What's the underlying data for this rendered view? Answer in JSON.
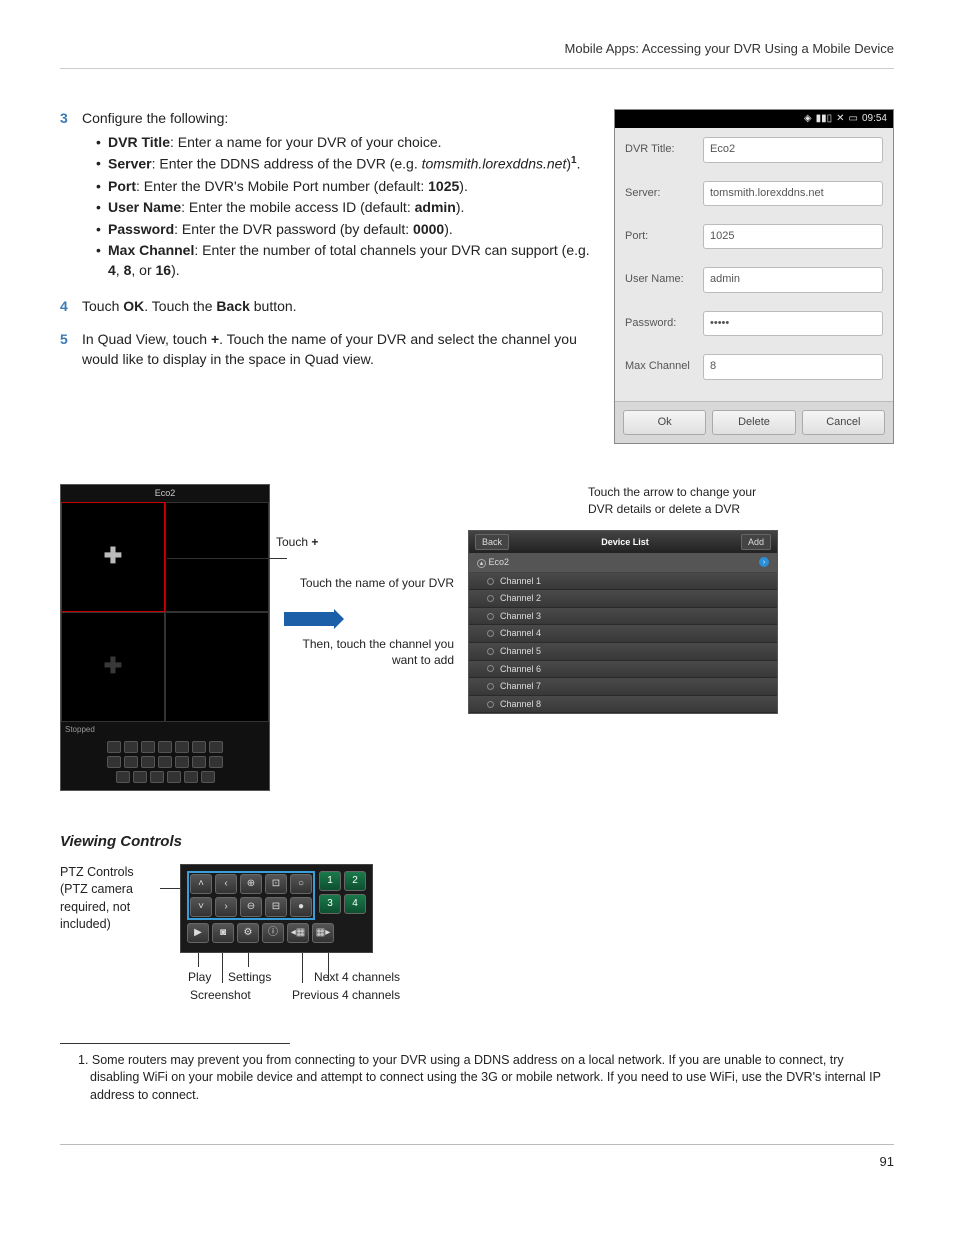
{
  "header": "Mobile Apps: Accessing your DVR Using a Mobile Device",
  "steps": {
    "s3": {
      "num": "3",
      "intro": "Configure the following:",
      "items": [
        {
          "label": "DVR Title",
          "text": ": Enter a name for your DVR of your choice."
        },
        {
          "label": "Server",
          "text": ": Enter the DDNS address of the DVR (e.g. ",
          "italic": "tomsmith.lorexddns.net",
          "after_italic": ")",
          "sup": "1",
          "tail": "."
        },
        {
          "label": "Port",
          "text": ": Enter the DVR's Mobile Port number (default: ",
          "bold2": "1025",
          "after_bold": ")."
        },
        {
          "label": "User Name",
          "text": ": Enter the mobile access ID (default: ",
          "bold2": "admin",
          "after_bold": ")."
        },
        {
          "label": "Password",
          "text": ": Enter the DVR password (by default: ",
          "bold2": "0000",
          "after_bold": ")."
        },
        {
          "label": "Max Channel",
          "text": ": Enter the number of total channels your DVR can support (e.g. ",
          "bold2": "4",
          "mid": ", ",
          "bold3": "8",
          "mid2": ", or ",
          "bold4": "16",
          "after_bold": ")."
        }
      ]
    },
    "s4": {
      "num": "4",
      "pre": "Touch ",
      "b1": "OK",
      "mid": ". Touch the ",
      "b2": "Back",
      "post": " button."
    },
    "s5": {
      "num": "5",
      "pre": "In Quad View, touch ",
      "b1": "+",
      "post": ". Touch the name of your DVR and select the channel you would like to display in the space in Quad view."
    }
  },
  "phone": {
    "time": "09:54",
    "fields": {
      "dvr_title": {
        "label": "DVR Title:",
        "value": "Eco2"
      },
      "server": {
        "label": "Server:",
        "value": "tomsmith.lorexddns.net"
      },
      "port": {
        "label": "Port:",
        "value": "1025"
      },
      "user": {
        "label": "User Name:",
        "value": "admin"
      },
      "password": {
        "label": "Password:",
        "value": "•••••"
      },
      "max": {
        "label": "Max Channel",
        "value": "8"
      }
    },
    "buttons": {
      "ok": "Ok",
      "delete": "Delete",
      "cancel": "Cancel"
    }
  },
  "quad": {
    "title": "Eco2",
    "status": "Stopped"
  },
  "callouts": {
    "touch_plus_pre": "Touch ",
    "touch_plus_b": "+",
    "touch_name": "Touch the name of your DVR",
    "then_touch": "Then, touch the channel you want to add",
    "arrow_note": "Touch the arrow to change your DVR details or delete a DVR"
  },
  "device_list": {
    "back": "Back",
    "title": "Device List",
    "add": "Add",
    "dvr": "Eco2",
    "channels": [
      "Channel 1",
      "Channel 2",
      "Channel 3",
      "Channel 4",
      "Channel 5",
      "Channel 6",
      "Channel 7",
      "Channel 8"
    ]
  },
  "viewing": {
    "title": "Viewing Controls",
    "ptz_label": "PTZ Controls (PTZ camera required, not included)",
    "nums": [
      "1",
      "2",
      "3",
      "4"
    ],
    "labels": {
      "play": "Play",
      "screenshot": "Screenshot",
      "settings": "Settings",
      "next4": "Next 4 channels",
      "prev4": "Previous 4 channels"
    }
  },
  "footnote": "1. Some routers may prevent you from connecting to your DVR using a DDNS address on a local network. If you are unable to connect, try disabling WiFi on your mobile device and attempt to connect using the 3G or mobile network. If you need to use WiFi, use the DVR's internal IP address to connect.",
  "page_num": "91"
}
